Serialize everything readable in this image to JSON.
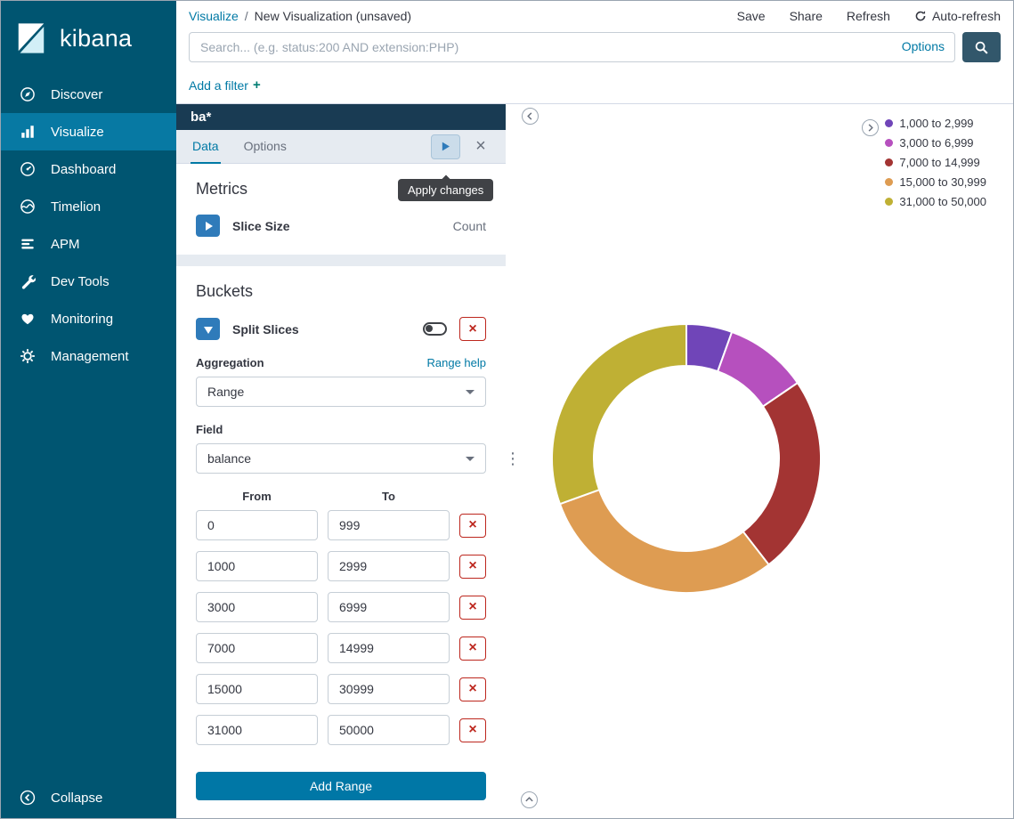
{
  "sidebar": {
    "brand": "kibana",
    "items": [
      {
        "label": "Discover",
        "icon": "discover-icon",
        "active": false
      },
      {
        "label": "Visualize",
        "icon": "visualize-icon",
        "active": true
      },
      {
        "label": "Dashboard",
        "icon": "dashboard-icon",
        "active": false
      },
      {
        "label": "Timelion",
        "icon": "timelion-icon",
        "active": false
      },
      {
        "label": "APM",
        "icon": "apm-icon",
        "active": false
      },
      {
        "label": "Dev Tools",
        "icon": "devtools-icon",
        "active": false
      },
      {
        "label": "Monitoring",
        "icon": "monitoring-icon",
        "active": false
      },
      {
        "label": "Management",
        "icon": "management-icon",
        "active": false
      }
    ],
    "collapse_label": "Collapse"
  },
  "topbar": {
    "breadcrumb_section": "Visualize",
    "breadcrumb_separator": "/",
    "breadcrumb_current": "New Visualization (unsaved)",
    "actions": [
      "Save",
      "Share",
      "Refresh"
    ],
    "auto_refresh_label": "Auto-refresh",
    "search_placeholder": "Search... (e.g. status:200 AND extension:PHP)",
    "options_label": "Options",
    "add_filter_label": "Add a filter",
    "add_filter_plus": "+"
  },
  "editor": {
    "index_pattern": "ba*",
    "tabs": [
      {
        "label": "Data",
        "active": true
      },
      {
        "label": "Options",
        "active": false
      }
    ],
    "apply_tooltip": "Apply changes",
    "metrics": {
      "title": "Metrics",
      "row_label": "Slice Size",
      "row_value": "Count"
    },
    "buckets": {
      "title": "Buckets",
      "bucket_type": "Split Slices",
      "aggregation_label": "Aggregation",
      "range_help": "Range help",
      "aggregation_value": "Range",
      "field_label": "Field",
      "field_value": "balance",
      "from_header": "From",
      "to_header": "To",
      "ranges": [
        {
          "from": "0",
          "to": "999"
        },
        {
          "from": "1000",
          "to": "2999"
        },
        {
          "from": "3000",
          "to": "6999"
        },
        {
          "from": "7000",
          "to": "14999"
        },
        {
          "from": "15000",
          "to": "30999"
        },
        {
          "from": "31000",
          "to": "50000"
        }
      ],
      "add_range_label": "Add Range"
    }
  },
  "chart_data": {
    "type": "pie",
    "subtype": "donut",
    "metric": "Count",
    "legend_position": "top-right",
    "slices": [
      {
        "label": "1,000 to 2,999",
        "color": "#7045B8",
        "percent": 5.5
      },
      {
        "label": "3,000 to 6,999",
        "color": "#B650BE",
        "percent": 10
      },
      {
        "label": "7,000 to 14,999",
        "color": "#A33433",
        "percent": 24
      },
      {
        "label": "15,000 to 30,999",
        "color": "#DE9C52",
        "percent": 30
      },
      {
        "label": "31,000 to 50,000",
        "color": "#BFB034",
        "percent": 30.5
      }
    ]
  },
  "colors": {
    "sidebar_bg": "#005571",
    "sidebar_active": "#0779A3",
    "link": "#0079A5",
    "panel_header_bg": "#193B53",
    "primary_button": "#0077A6",
    "agg_button": "#2F7BBA",
    "danger": "#BD271E"
  }
}
